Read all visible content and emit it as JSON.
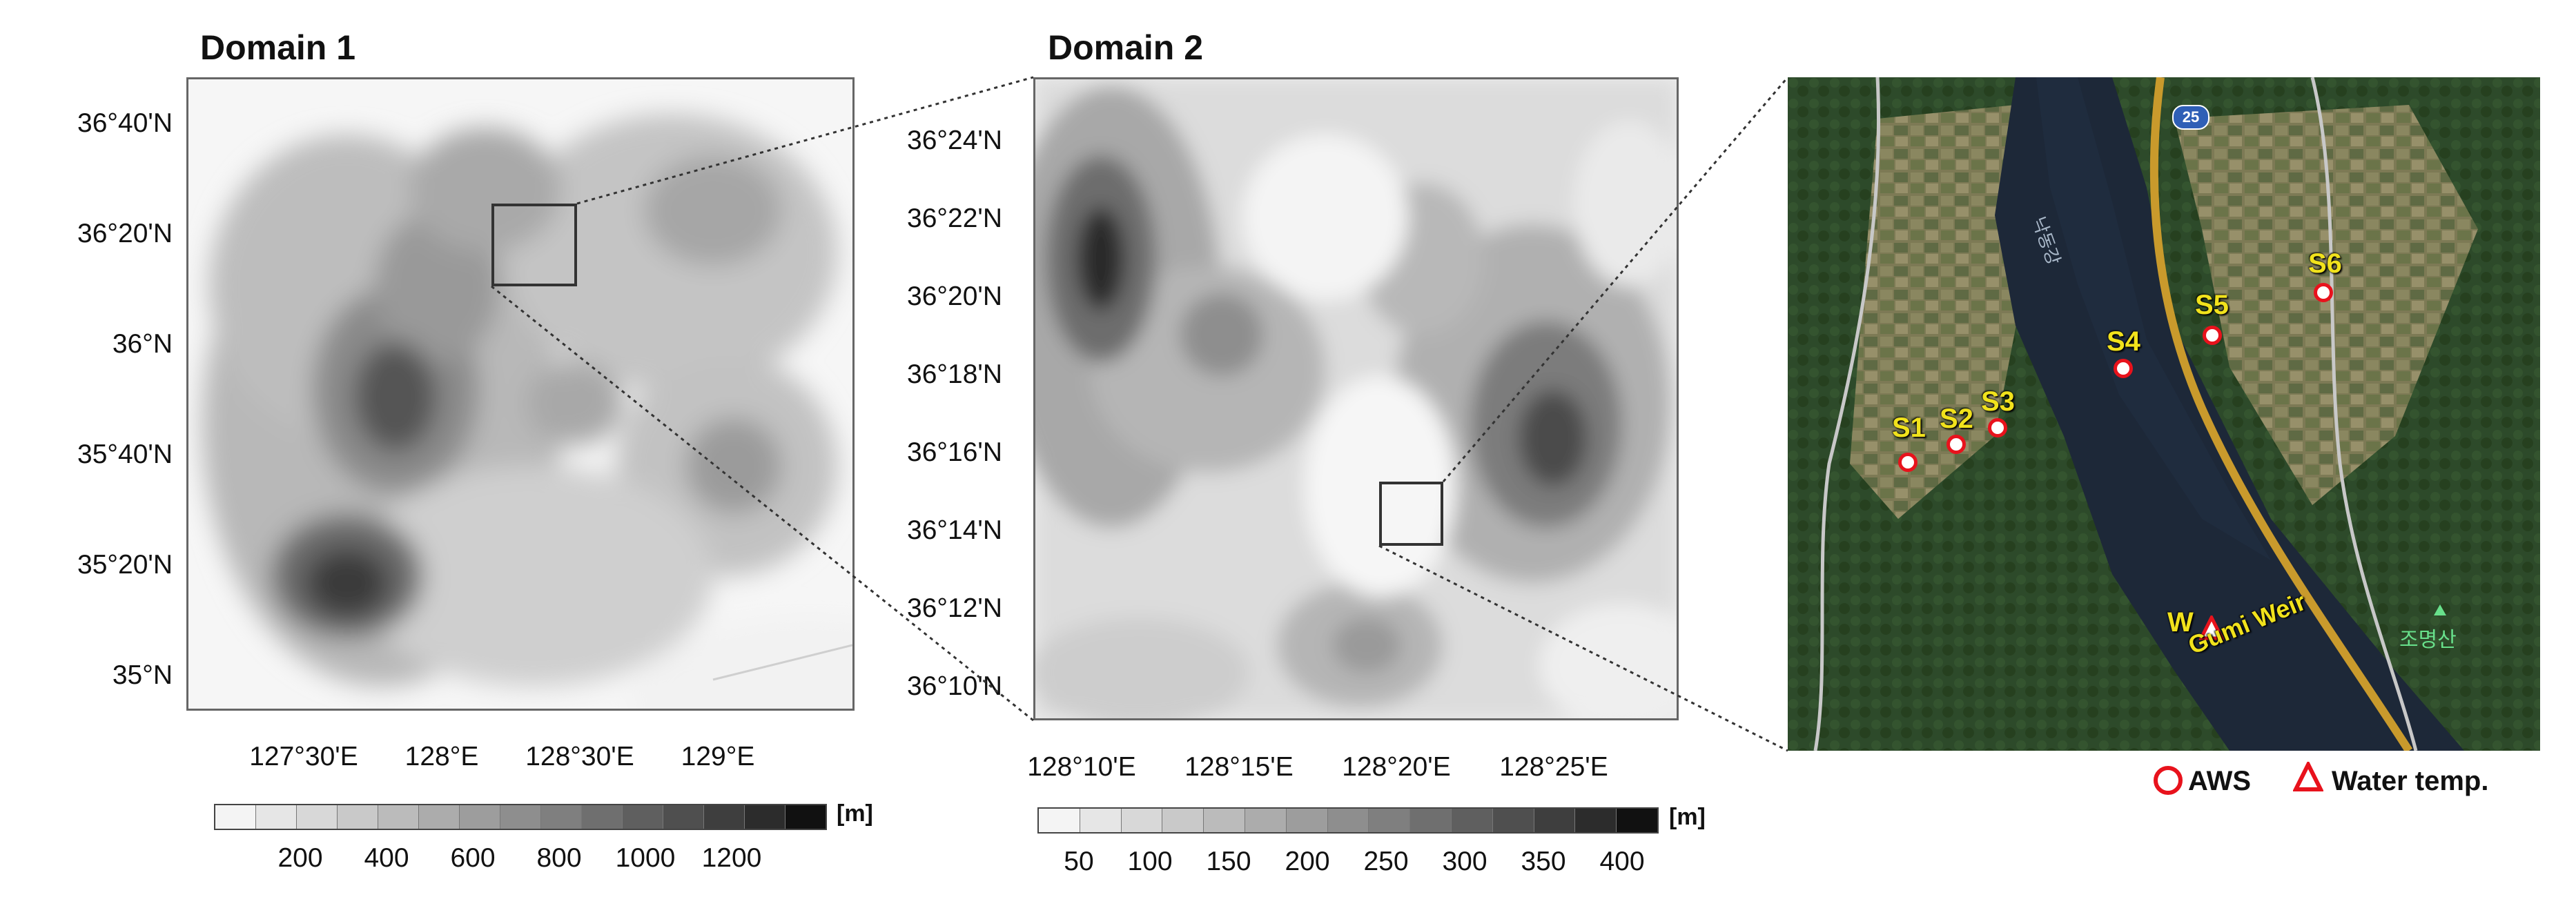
{
  "domain1": {
    "title": "Domain 1",
    "y_ticks": [
      "36°40'N",
      "36°20'N",
      "36°N",
      "35°40'N",
      "35°20'N",
      "35°N"
    ],
    "x_ticks": [
      "127°30'E",
      "128°E",
      "128°30'E",
      "129°E"
    ],
    "colorbar": {
      "unit": "[m]",
      "labels": [
        "200",
        "400",
        "600",
        "800",
        "1000",
        "1200"
      ],
      "colors": [
        "#f4f4f4",
        "#e6e6e6",
        "#d8d8d8",
        "#c9c9c9",
        "#bbbbbb",
        "#acacac",
        "#9d9d9d",
        "#8e8e8e",
        "#7f7f7f",
        "#6f6f6f",
        "#5f5f5f",
        "#4f4f4f",
        "#3e3e3e",
        "#2c2c2c",
        "#111111"
      ]
    }
  },
  "domain2": {
    "title": "Domain 2",
    "y_ticks": [
      "36°24'N",
      "36°22'N",
      "36°20'N",
      "36°18'N",
      "36°16'N",
      "36°14'N",
      "36°12'N",
      "36°10'N"
    ],
    "x_ticks": [
      "128°10'E",
      "128°15'E",
      "128°20'E",
      "128°25'E"
    ],
    "colorbar": {
      "unit": "[m]",
      "labels": [
        "50",
        "100",
        "150",
        "200",
        "250",
        "300",
        "350",
        "400"
      ],
      "colors": [
        "#f4f4f4",
        "#e6e6e6",
        "#d8d8d8",
        "#c9c9c9",
        "#bbbbbb",
        "#acacac",
        "#9d9d9d",
        "#8e8e8e",
        "#7f7f7f",
        "#6f6f6f",
        "#5f5f5f",
        "#4f4f4f",
        "#3e3e3e",
        "#2c2c2c",
        "#111111"
      ]
    }
  },
  "satellite": {
    "sites": [
      "S1",
      "S2",
      "S3",
      "S4",
      "S5",
      "S6"
    ],
    "water_site": "W",
    "weir_label": "Gumi Weir",
    "road_shield": "25",
    "river_label": "낙동강",
    "mountain_label": "조명산"
  },
  "legend": {
    "aws_label": "AWS",
    "water_label": "Water temp."
  },
  "colors": {
    "site_label": "#f1e21c",
    "marker": "#e8121c",
    "river": "#1d2838"
  }
}
